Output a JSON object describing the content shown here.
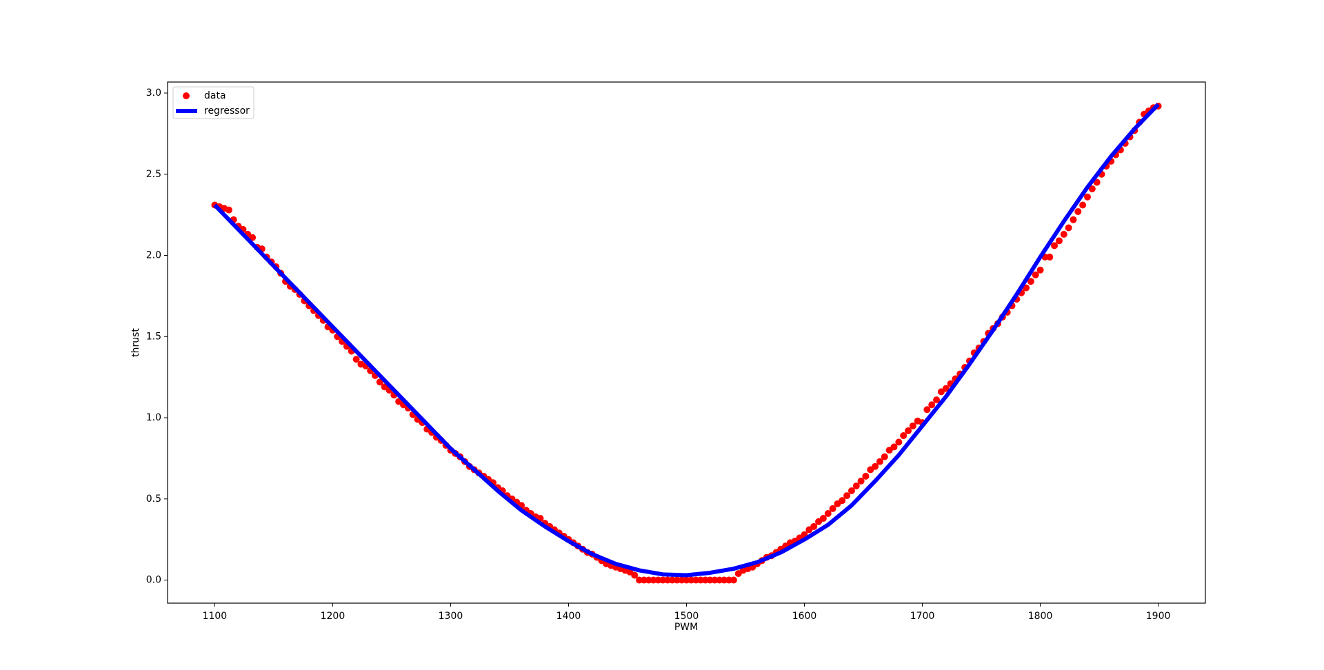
{
  "chart_data": {
    "type": "scatter",
    "xlabel": "PWM",
    "ylabel": "thrust",
    "xlim": [
      1060,
      1940
    ],
    "ylim": [
      -0.142,
      3.068
    ],
    "xticks": [
      1100,
      1200,
      1300,
      1400,
      1500,
      1600,
      1700,
      1800,
      1900
    ],
    "yticks": [
      {
        "value": 0,
        "label": "0.0"
      },
      0.5,
      {
        "value": 1,
        "label": "1.0"
      },
      1.5,
      {
        "value": 2,
        "label": "2.0"
      },
      2.5,
      {
        "value": 3,
        "label": "3.0"
      }
    ],
    "legend": "upper left",
    "series": [
      {
        "name": "data",
        "kind": "scatter",
        "color": "#ff0000",
        "x": [
          1100,
          1104,
          1108,
          1112,
          1116,
          1120,
          1124,
          1128,
          1132,
          1136,
          1140,
          1144,
          1148,
          1152,
          1156,
          1160,
          1164,
          1168,
          1172,
          1176,
          1180,
          1184,
          1188,
          1192,
          1196,
          1200,
          1204,
          1208,
          1212,
          1216,
          1220,
          1224,
          1228,
          1232,
          1236,
          1240,
          1244,
          1248,
          1252,
          1256,
          1260,
          1264,
          1268,
          1272,
          1276,
          1280,
          1284,
          1288,
          1292,
          1296,
          1300,
          1304,
          1308,
          1312,
          1316,
          1320,
          1324,
          1328,
          1332,
          1336,
          1340,
          1344,
          1348,
          1352,
          1356,
          1360,
          1364,
          1368,
          1372,
          1376,
          1380,
          1384,
          1388,
          1392,
          1396,
          1400,
          1404,
          1408,
          1412,
          1416,
          1420,
          1424,
          1428,
          1432,
          1436,
          1440,
          1444,
          1448,
          1452,
          1456,
          1460,
          1464,
          1468,
          1472,
          1476,
          1480,
          1484,
          1488,
          1492,
          1496,
          1500,
          1504,
          1508,
          1512,
          1516,
          1520,
          1524,
          1528,
          1532,
          1536,
          1540,
          1544,
          1548,
          1552,
          1556,
          1560,
          1564,
          1568,
          1572,
          1576,
          1580,
          1584,
          1588,
          1592,
          1596,
          1600,
          1604,
          1608,
          1612,
          1616,
          1620,
          1624,
          1628,
          1632,
          1636,
          1640,
          1644,
          1648,
          1652,
          1656,
          1660,
          1664,
          1668,
          1672,
          1676,
          1680,
          1684,
          1688,
          1692,
          1696,
          1700,
          1704,
          1708,
          1712,
          1716,
          1720,
          1724,
          1728,
          1732,
          1736,
          1740,
          1744,
          1748,
          1752,
          1756,
          1760,
          1764,
          1768,
          1772,
          1776,
          1780,
          1784,
          1788,
          1792,
          1796,
          1800,
          1804,
          1808,
          1812,
          1816,
          1820,
          1824,
          1828,
          1832,
          1836,
          1840,
          1844,
          1848,
          1852,
          1856,
          1860,
          1864,
          1868,
          1872,
          1876,
          1880,
          1884,
          1888,
          1892,
          1896,
          1900
        ],
        "values": [
          2.31,
          2.3,
          2.29,
          2.28,
          2.22,
          2.18,
          2.16,
          2.13,
          2.11,
          2.05,
          2.04,
          1.99,
          1.96,
          1.93,
          1.89,
          1.84,
          1.81,
          1.79,
          1.76,
          1.72,
          1.69,
          1.66,
          1.63,
          1.6,
          1.56,
          1.54,
          1.5,
          1.47,
          1.44,
          1.41,
          1.36,
          1.33,
          1.32,
          1.29,
          1.26,
          1.22,
          1.19,
          1.17,
          1.14,
          1.1,
          1.08,
          1.06,
          1.02,
          0.99,
          0.97,
          0.93,
          0.91,
          0.88,
          0.86,
          0.83,
          0.8,
          0.78,
          0.76,
          0.73,
          0.7,
          0.68,
          0.66,
          0.64,
          0.62,
          0.6,
          0.57,
          0.55,
          0.52,
          0.5,
          0.48,
          0.46,
          0.43,
          0.41,
          0.39,
          0.38,
          0.35,
          0.33,
          0.31,
          0.29,
          0.27,
          0.25,
          0.23,
          0.21,
          0.19,
          0.17,
          0.16,
          0.14,
          0.12,
          0.1,
          0.09,
          0.08,
          0.07,
          0.06,
          0.05,
          0.03,
          0,
          0,
          0,
          0,
          0,
          0,
          0,
          0,
          0,
          0,
          0,
          0,
          0,
          0,
          0,
          0,
          0,
          0,
          0,
          0,
          0,
          0.04,
          0.06,
          0.07,
          0.08,
          0.1,
          0.12,
          0.14,
          0.15,
          0.17,
          0.19,
          0.21,
          0.23,
          0.24,
          0.26,
          0.28,
          0.31,
          0.33,
          0.36,
          0.38,
          0.41,
          0.44,
          0.47,
          0.49,
          0.52,
          0.55,
          0.58,
          0.61,
          0.64,
          0.68,
          0.7,
          0.73,
          0.76,
          0.8,
          0.82,
          0.85,
          0.89,
          0.92,
          0.95,
          0.98,
          0.97,
          1.05,
          1.08,
          1.11,
          1.16,
          1.18,
          1.21,
          1.24,
          1.27,
          1.31,
          1.35,
          1.4,
          1.43,
          1.47,
          1.52,
          1.55,
          1.58,
          1.62,
          1.65,
          1.69,
          1.73,
          1.77,
          1.8,
          1.84,
          1.88,
          1.91,
          1.99,
          1.99,
          2.06,
          2.09,
          2.13,
          2.17,
          2.22,
          2.27,
          2.31,
          2.36,
          2.41,
          2.45,
          2.5,
          2.55,
          2.58,
          2.62,
          2.65,
          2.69,
          2.73,
          2.77,
          2.82,
          2.87,
          2.89,
          2.91,
          2.92
        ]
      },
      {
        "name": "regressor",
        "kind": "line",
        "color": "#0000ff",
        "x": [
          1100,
          1120,
          1140,
          1160,
          1180,
          1200,
          1220,
          1240,
          1260,
          1280,
          1300,
          1320,
          1340,
          1360,
          1380,
          1400,
          1420,
          1440,
          1460,
          1480,
          1500,
          1520,
          1540,
          1560,
          1580,
          1600,
          1620,
          1640,
          1660,
          1680,
          1700,
          1720,
          1740,
          1760,
          1780,
          1800,
          1820,
          1840,
          1860,
          1880,
          1900
        ],
        "values": [
          2.31,
          2.16,
          2.01,
          1.86,
          1.71,
          1.56,
          1.41,
          1.26,
          1.11,
          0.96,
          0.81,
          0.68,
          0.55,
          0.43,
          0.33,
          0.24,
          0.16,
          0.1,
          0.06,
          0.035,
          0.03,
          0.045,
          0.07,
          0.11,
          0.17,
          0.25,
          0.34,
          0.46,
          0.61,
          0.77,
          0.95,
          1.13,
          1.33,
          1.54,
          1.76,
          1.99,
          2.21,
          2.42,
          2.61,
          2.78,
          2.93
        ]
      }
    ]
  }
}
